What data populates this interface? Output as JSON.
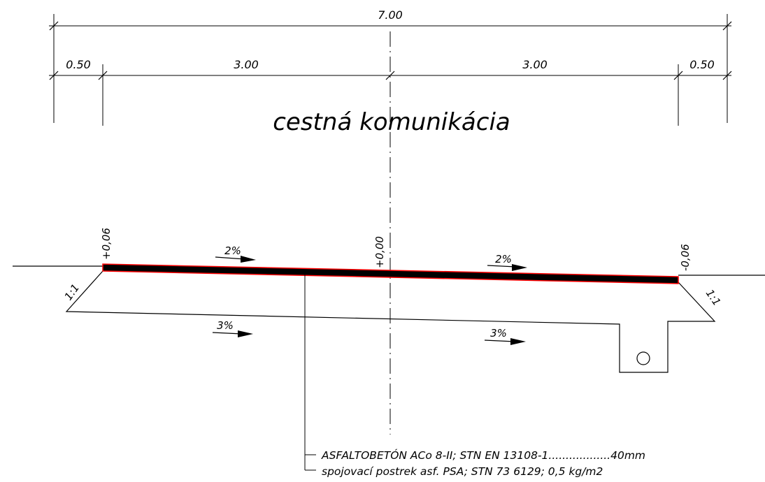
{
  "dimensions": {
    "overall": "7.00",
    "left_shoulder": "0.50",
    "left_lane": "3.00",
    "right_lane": "3.00",
    "right_shoulder": "0.50"
  },
  "title": "cestná komunikácia",
  "levels": {
    "left": "+0,06",
    "center": "+0,00",
    "right": "-0,06"
  },
  "slopes": {
    "surface_left": "2%",
    "surface_right": "2%",
    "subgrade_left": "3%",
    "subgrade_right": "3%",
    "embankment_left": "1:1",
    "embankment_right": "1:1"
  },
  "layers": [
    "ASFALTOBETÓN ACo 8-II; STN EN 13108-1..................40mm",
    "spojovací postrek asf. PSA; STN 73 6129; 0,5 kg/m2"
  ],
  "colors": {
    "line": "#000000",
    "asphalt_fill": "#000000",
    "asphalt_edge": "#ff0000",
    "background": "#ffffff"
  }
}
